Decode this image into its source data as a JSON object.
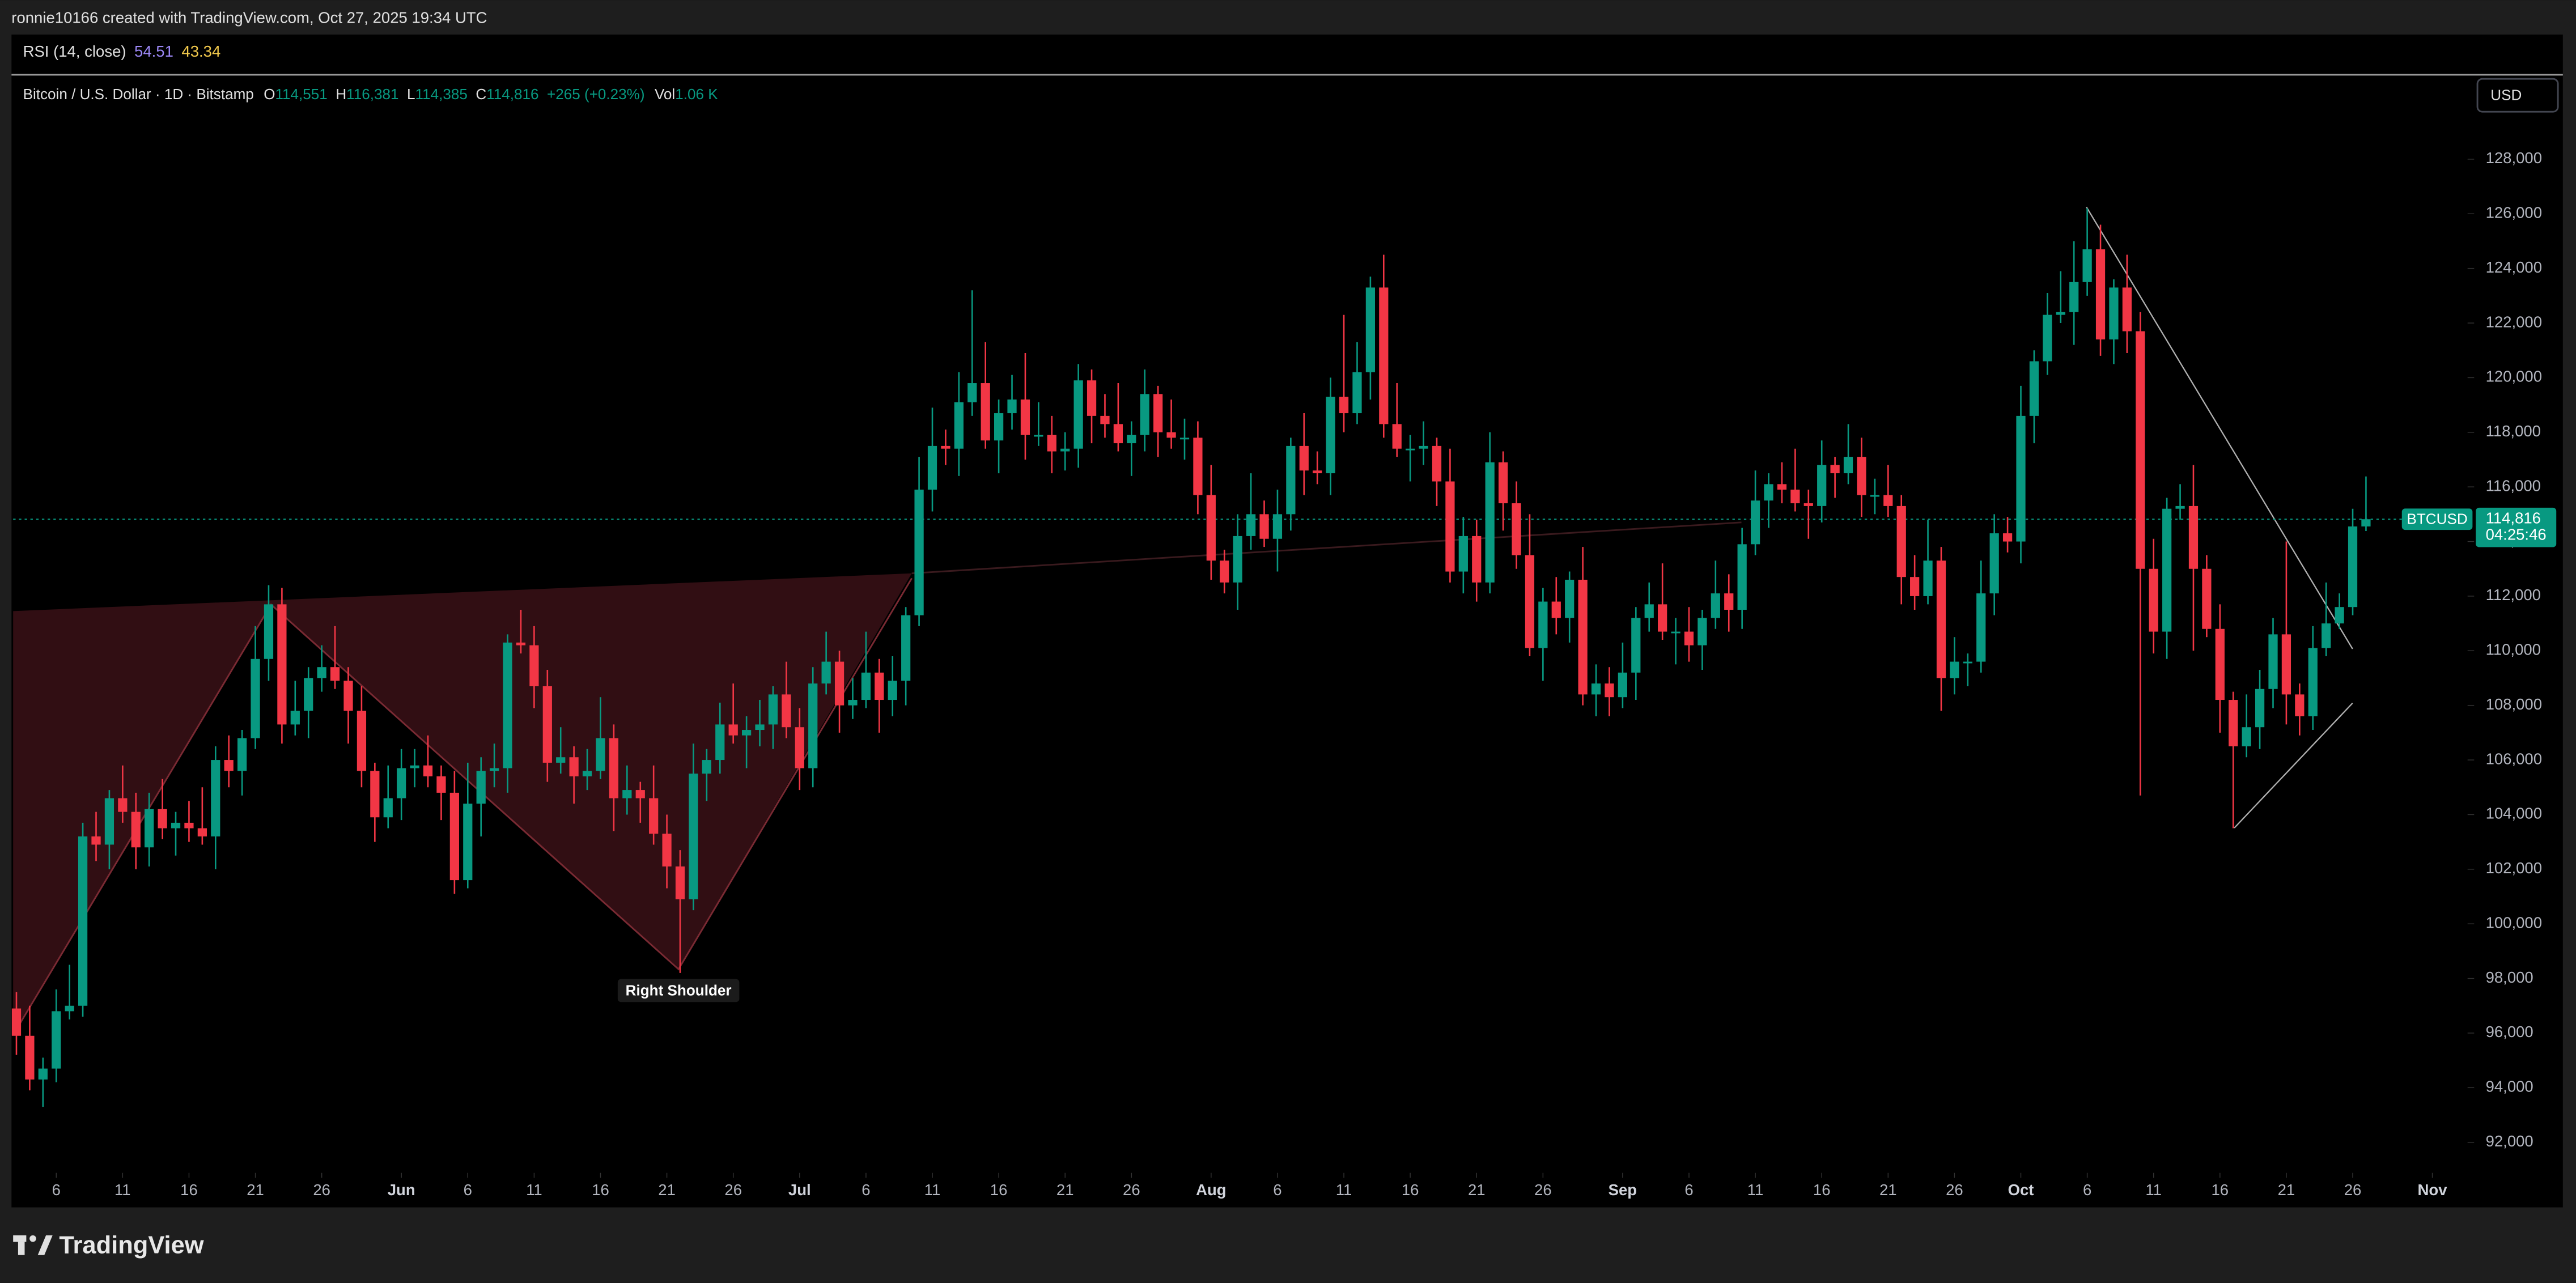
{
  "header": {
    "credit": "ronnie10166 created with TradingView.com, Oct 27, 2025 19:34 UTC",
    "symbol": "Bitcoin / U.S. Dollar · 1D · Bitstamp",
    "fields": [
      {
        "key": "O",
        "value": "114,551"
      },
      {
        "key": "H",
        "value": "116,381"
      },
      {
        "key": "L",
        "value": "114,385"
      },
      {
        "key": "C",
        "value": "114,816"
      }
    ],
    "change": "+265 (+0.23%)",
    "volume_key": "Vol",
    "volume": "1.06 K",
    "currency": "USD"
  },
  "rsi": {
    "name": "RSI (14, close)",
    "values": [
      "54.51",
      "43.34"
    ]
  },
  "footer": {
    "brand": "TradingView"
  },
  "chart_data": {
    "type": "candlestick",
    "up_color": "#089981",
    "down_color": "#f23645",
    "annotations": [
      "Right Shoulder"
    ],
    "price_line": {
      "value": 114816,
      "label": "114,816",
      "symbol": "BTCUSD",
      "countdown": "04:25:46"
    },
    "ylim": [
      91000,
      131000
    ],
    "yticks": [
      {
        "value": 92000,
        "label": "92,000"
      },
      {
        "value": 94000,
        "label": "94,000"
      },
      {
        "value": 96000,
        "label": "96,000"
      },
      {
        "value": 98000,
        "label": "98,000"
      },
      {
        "value": 100000,
        "label": "100,000"
      },
      {
        "value": 102000,
        "label": "102,000"
      },
      {
        "value": 104000,
        "label": "104,000"
      },
      {
        "value": 106000,
        "label": "106,000"
      },
      {
        "value": 108000,
        "label": "108,000"
      },
      {
        "value": 110000,
        "label": "110,000"
      },
      {
        "value": 112000,
        "label": "112,000"
      },
      {
        "value": 114000,
        "label": "114,000"
      },
      {
        "value": 116000,
        "label": "116,000"
      },
      {
        "value": 118000,
        "label": "118,000"
      },
      {
        "value": 120000,
        "label": "120,000"
      },
      {
        "value": 122000,
        "label": "122,000"
      },
      {
        "value": 124000,
        "label": "124,000"
      },
      {
        "value": 126000,
        "label": "126,000"
      },
      {
        "value": 128000,
        "label": "128,000"
      }
    ],
    "xticks": [
      {
        "value": "May 6",
        "label": "6"
      },
      {
        "value": "May 11",
        "label": "11"
      },
      {
        "value": "May 16",
        "label": "16"
      },
      {
        "value": "May 21",
        "label": "21"
      },
      {
        "value": "May 26",
        "label": "26"
      },
      {
        "value": "Jun 1",
        "label": "Jun"
      },
      {
        "value": "Jun 6",
        "label": "6"
      },
      {
        "value": "Jun 11",
        "label": "11"
      },
      {
        "value": "Jun 16",
        "label": "16"
      },
      {
        "value": "Jun 21",
        "label": "21"
      },
      {
        "value": "Jun 26",
        "label": "26"
      },
      {
        "value": "Jul 1",
        "label": "Jul"
      },
      {
        "value": "Jul 6",
        "label": "6"
      },
      {
        "value": "Jul 11",
        "label": "11"
      },
      {
        "value": "Jul 16",
        "label": "16"
      },
      {
        "value": "Jul 21",
        "label": "21"
      },
      {
        "value": "Jul 26",
        "label": "26"
      },
      {
        "value": "Aug 1",
        "label": "Aug"
      },
      {
        "value": "Aug 6",
        "label": "6"
      },
      {
        "value": "Aug 11",
        "label": "11"
      },
      {
        "value": "Aug 16",
        "label": "16"
      },
      {
        "value": "Aug 21",
        "label": "21"
      },
      {
        "value": "Aug 26",
        "label": "26"
      },
      {
        "value": "Sep 1",
        "label": "Sep"
      },
      {
        "value": "Sep 6",
        "label": "6"
      },
      {
        "value": "Sep 11",
        "label": "11"
      },
      {
        "value": "Sep 16",
        "label": "16"
      },
      {
        "value": "Sep 21",
        "label": "21"
      },
      {
        "value": "Sep 26",
        "label": "26"
      },
      {
        "value": "Oct 1",
        "label": "Oct"
      },
      {
        "value": "Oct 6",
        "label": "6"
      },
      {
        "value": "Oct 11",
        "label": "11"
      },
      {
        "value": "Oct 16",
        "label": "16"
      },
      {
        "value": "Oct 21",
        "label": "21"
      },
      {
        "value": "Oct 26",
        "label": "26"
      },
      {
        "value": "Nov 1",
        "label": "Nov"
      }
    ],
    "x": [
      "May 3",
      "May 4",
      "May 5",
      "May 6",
      "May 7",
      "May 8",
      "May 9",
      "May 10",
      "May 11",
      "May 12",
      "May 13",
      "May 14",
      "May 15",
      "May 16",
      "May 17",
      "May 18",
      "May 19",
      "May 20",
      "May 21",
      "May 22",
      "May 23",
      "May 24",
      "May 25",
      "May 26",
      "May 27",
      "May 28",
      "May 29",
      "May 30",
      "May 31",
      "Jun 1",
      "Jun 2",
      "Jun 3",
      "Jun 4",
      "Jun 5",
      "Jun 6",
      "Jun 7",
      "Jun 8",
      "Jun 9",
      "Jun 10",
      "Jun 11",
      "Jun 12",
      "Jun 13",
      "Jun 14",
      "Jun 15",
      "Jun 16",
      "Jun 17",
      "Jun 18",
      "Jun 19",
      "Jun 20",
      "Jun 21",
      "Jun 22",
      "Jun 23",
      "Jun 24",
      "Jun 25",
      "Jun 26",
      "Jun 27",
      "Jun 28",
      "Jun 29",
      "Jun 30",
      "Jul 1",
      "Jul 2",
      "Jul 3",
      "Jul 4",
      "Jul 5",
      "Jul 6",
      "Jul 7",
      "Jul 8",
      "Jul 9",
      "Jul 10",
      "Jul 11",
      "Jul 12",
      "Jul 13",
      "Jul 14",
      "Jul 15",
      "Jul 16",
      "Jul 17",
      "Jul 18",
      "Jul 19",
      "Jul 20",
      "Jul 21",
      "Jul 22",
      "Jul 23",
      "Jul 24",
      "Jul 25",
      "Jul 26",
      "Jul 27",
      "Jul 28",
      "Jul 29",
      "Jul 30",
      "Jul 31",
      "Aug 1",
      "Aug 2",
      "Aug 3",
      "Aug 4",
      "Aug 5",
      "Aug 6",
      "Aug 7",
      "Aug 8",
      "Aug 9",
      "Aug 10",
      "Aug 11",
      "Aug 12",
      "Aug 13",
      "Aug 14",
      "Aug 15",
      "Aug 16",
      "Aug 17",
      "Aug 18",
      "Aug 19",
      "Aug 20",
      "Aug 21",
      "Aug 22",
      "Aug 23",
      "Aug 24",
      "Aug 25",
      "Aug 26",
      "Aug 27",
      "Aug 28",
      "Aug 29",
      "Aug 30",
      "Aug 31",
      "Sep 1",
      "Sep 2",
      "Sep 3",
      "Sep 4",
      "Sep 5",
      "Sep 6",
      "Sep 7",
      "Sep 8",
      "Sep 9",
      "Sep 10",
      "Sep 11",
      "Sep 12",
      "Sep 13",
      "Sep 14",
      "Sep 15",
      "Sep 16",
      "Sep 17",
      "Sep 18",
      "Sep 19",
      "Sep 20",
      "Sep 21",
      "Sep 22",
      "Sep 23",
      "Sep 24",
      "Sep 25",
      "Sep 26",
      "Sep 27",
      "Sep 28",
      "Sep 29",
      "Sep 30",
      "Oct 1",
      "Oct 2",
      "Oct 3",
      "Oct 4",
      "Oct 5",
      "Oct 6",
      "Oct 7",
      "Oct 8",
      "Oct 9",
      "Oct 10",
      "Oct 11",
      "Oct 12",
      "Oct 13",
      "Oct 14",
      "Oct 15",
      "Oct 16",
      "Oct 17",
      "Oct 18",
      "Oct 19",
      "Oct 20",
      "Oct 21",
      "Oct 22",
      "Oct 23",
      "Oct 24",
      "Oct 25",
      "Oct 26",
      "Oct 27"
    ],
    "open": [
      96900,
      95900,
      94300,
      94700,
      96800,
      97000,
      103200,
      102900,
      104600,
      104100,
      102800,
      104200,
      103500,
      103700,
      103500,
      103200,
      106000,
      105600,
      106800,
      109700,
      111700,
      107300,
      107800,
      109000,
      109400,
      108900,
      107800,
      105600,
      103900,
      104600,
      105700,
      105800,
      105400,
      104800,
      101600,
      104400,
      105600,
      105700,
      110300,
      110200,
      108700,
      105900,
      106100,
      105400,
      105600,
      106800,
      104600,
      104900,
      104600,
      103300,
      102100,
      100900,
      105500,
      106000,
      107300,
      106900,
      107100,
      107300,
      108400,
      107200,
      105700,
      108800,
      109600,
      108000,
      108200,
      109200,
      108200,
      108900,
      111300,
      115900,
      117500,
      117400,
      119100,
      119800,
      117700,
      118700,
      119200,
      117900,
      117900,
      117300,
      117400,
      119900,
      118600,
      118300,
      117600,
      117900,
      119400,
      118000,
      117800,
      117800,
      115700,
      113300,
      112500,
      114200,
      115000,
      114100,
      115000,
      117500,
      116600,
      116500,
      119300,
      118700,
      120200,
      123300,
      118300,
      117400,
      117400,
      117500,
      116200,
      112900,
      114200,
      112500,
      116900,
      115400,
      113500,
      110100,
      111800,
      111200,
      112600,
      108400,
      108800,
      108300,
      109200,
      111200,
      111700,
      110700,
      110700,
      110200,
      111200,
      112100,
      111500,
      113900,
      115500,
      116100,
      115900,
      115400,
      115300,
      116800,
      116500,
      117100,
      115700,
      115700,
      115300,
      112700,
      112000,
      113300,
      109000,
      109600,
      109600,
      112100,
      114300,
      114000,
      118600,
      120600,
      122300,
      122400,
      123500,
      124700,
      121400,
      123300,
      121700,
      113000,
      110700,
      115200,
      115300,
      113000,
      110800,
      108200,
      106500,
      107200,
      108600,
      110600,
      108400,
      107600,
      110100,
      111000,
      111600,
      114551
    ],
    "high": [
      97500,
      97000,
      95100,
      97600,
      98500,
      103700,
      104100,
      104900,
      105800,
      104800,
      104800,
      105300,
      104100,
      104500,
      105000,
      106500,
      106900,
      107100,
      110900,
      112400,
      112300,
      108900,
      109400,
      110200,
      110900,
      109400,
      108700,
      105900,
      105800,
      106400,
      106400,
      106900,
      105800,
      105600,
      105900,
      106100,
      106600,
      110600,
      111500,
      110900,
      109300,
      107200,
      106500,
      106400,
      108300,
      107300,
      105800,
      105200,
      105800,
      104000,
      102700,
      106600,
      106400,
      108100,
      108800,
      107600,
      108200,
      108700,
      109600,
      107900,
      109400,
      110700,
      110000,
      109000,
      110700,
      109700,
      109800,
      111600,
      117100,
      118900,
      118100,
      120200,
      123200,
      121300,
      119200,
      120100,
      120900,
      119100,
      118600,
      118000,
      120500,
      120300,
      119400,
      119800,
      118400,
      120300,
      119700,
      119200,
      118500,
      118400,
      116800,
      113700,
      115000,
      116500,
      115500,
      115900,
      117800,
      118700,
      117300,
      120000,
      122300,
      121300,
      123700,
      124500,
      119800,
      117900,
      118400,
      117800,
      117400,
      114900,
      114800,
      118000,
      117300,
      116200,
      115000,
      112300,
      112700,
      112900,
      113800,
      109500,
      109400,
      110300,
      111600,
      112500,
      113200,
      111200,
      111600,
      111500,
      113300,
      112800,
      114500,
      116600,
      116500,
      116900,
      117400,
      115900,
      117700,
      117100,
      118300,
      117800,
      116300,
      116800,
      115700,
      113500,
      114800,
      113800,
      110500,
      109900,
      113300,
      115000,
      114900,
      119700,
      121000,
      123100,
      123900,
      125000,
      126200,
      125600,
      123600,
      124500,
      122400,
      114100,
      115600,
      116100,
      116800,
      113500,
      111700,
      108500,
      108400,
      109300,
      111200,
      114000,
      108800,
      110900,
      112500,
      112100,
      115200,
      116381
    ],
    "low": [
      95200,
      93900,
      93300,
      94200,
      96500,
      96600,
      102300,
      102000,
      103700,
      102000,
      102100,
      103100,
      102500,
      103000,
      102900,
      102000,
      105000,
      104700,
      106400,
      108900,
      106600,
      106900,
      106800,
      108500,
      108600,
      106600,
      105000,
      103000,
      103500,
      103800,
      105000,
      105000,
      103800,
      101100,
      101300,
      103200,
      105000,
      104800,
      109900,
      107900,
      105200,
      105500,
      104400,
      104900,
      105300,
      103400,
      104000,
      103700,
      102900,
      101300,
      98200,
      100500,
      104500,
      105500,
      106600,
      105700,
      106500,
      106400,
      106800,
      104900,
      105000,
      108400,
      107000,
      107500,
      107900,
      107000,
      107600,
      108000,
      110900,
      115100,
      116800,
      116400,
      118600,
      117400,
      116500,
      118100,
      117000,
      117500,
      116500,
      116600,
      116700,
      117600,
      117800,
      117300,
      116400,
      117300,
      117100,
      117400,
      117000,
      115000,
      112600,
      112100,
      111500,
      113700,
      113800,
      112900,
      114400,
      115700,
      116100,
      115700,
      118000,
      118300,
      119200,
      117800,
      117100,
      116200,
      116800,
      115300,
      112500,
      112100,
      111800,
      112100,
      114400,
      113000,
      109800,
      108900,
      110600,
      110300,
      108000,
      107600,
      107600,
      107900,
      108200,
      110700,
      110400,
      109500,
      109600,
      109300,
      110800,
      110700,
      110800,
      113500,
      114500,
      115400,
      115100,
      114100,
      114700,
      115600,
      116100,
      114900,
      115000,
      114900,
      111700,
      111500,
      111700,
      107800,
      108400,
      108700,
      109200,
      111300,
      113600,
      113200,
      117600,
      120100,
      122000,
      121200,
      123000,
      120800,
      120500,
      120900,
      104700,
      109900,
      109700,
      114800,
      110000,
      110500,
      107000,
      103500,
      106100,
      106400,
      107900,
      107300,
      106900,
      107100,
      109800,
      110800,
      111300,
      114385
    ],
    "close": [
      95900,
      94300,
      94700,
      96800,
      97000,
      103200,
      102900,
      104600,
      104100,
      102800,
      104200,
      103500,
      103700,
      103500,
      103200,
      106000,
      105600,
      106800,
      109700,
      111700,
      107300,
      107800,
      109000,
      109400,
      108900,
      107800,
      105600,
      103900,
      104600,
      105700,
      105800,
      105400,
      104800,
      101600,
      104400,
      105600,
      105700,
      110300,
      110200,
      108700,
      105900,
      106100,
      105400,
      105600,
      106800,
      104600,
      104900,
      104600,
      103300,
      102100,
      100900,
      105500,
      106000,
      107300,
      106900,
      107100,
      107300,
      108400,
      107200,
      105700,
      108800,
      109600,
      108000,
      108200,
      109200,
      108200,
      108900,
      111300,
      115900,
      117500,
      117400,
      119100,
      119800,
      117700,
      118700,
      119200,
      117900,
      117900,
      117300,
      117400,
      119900,
      118600,
      118300,
      117600,
      117900,
      119400,
      118000,
      117800,
      117800,
      115700,
      113300,
      112500,
      114200,
      115000,
      114100,
      115000,
      117500,
      116600,
      116500,
      119300,
      118700,
      120200,
      123300,
      118300,
      117400,
      117400,
      117500,
      116200,
      112900,
      114200,
      112500,
      116900,
      115400,
      113500,
      110100,
      111800,
      111200,
      112600,
      108400,
      108800,
      108300,
      109200,
      111200,
      111700,
      110700,
      110700,
      110200,
      111200,
      112100,
      111500,
      113900,
      115500,
      116100,
      115900,
      115400,
      115300,
      116800,
      116500,
      117100,
      115700,
      115700,
      115300,
      112700,
      112000,
      113300,
      109000,
      109600,
      109600,
      112100,
      114300,
      114000,
      118600,
      120600,
      122300,
      122400,
      123500,
      124700,
      121400,
      123300,
      121700,
      113000,
      110700,
      115200,
      115300,
      113000,
      110800,
      108200,
      106500,
      107200,
      108600,
      110600,
      108400,
      107600,
      110100,
      111000,
      111600,
      114551,
      114816
    ]
  }
}
